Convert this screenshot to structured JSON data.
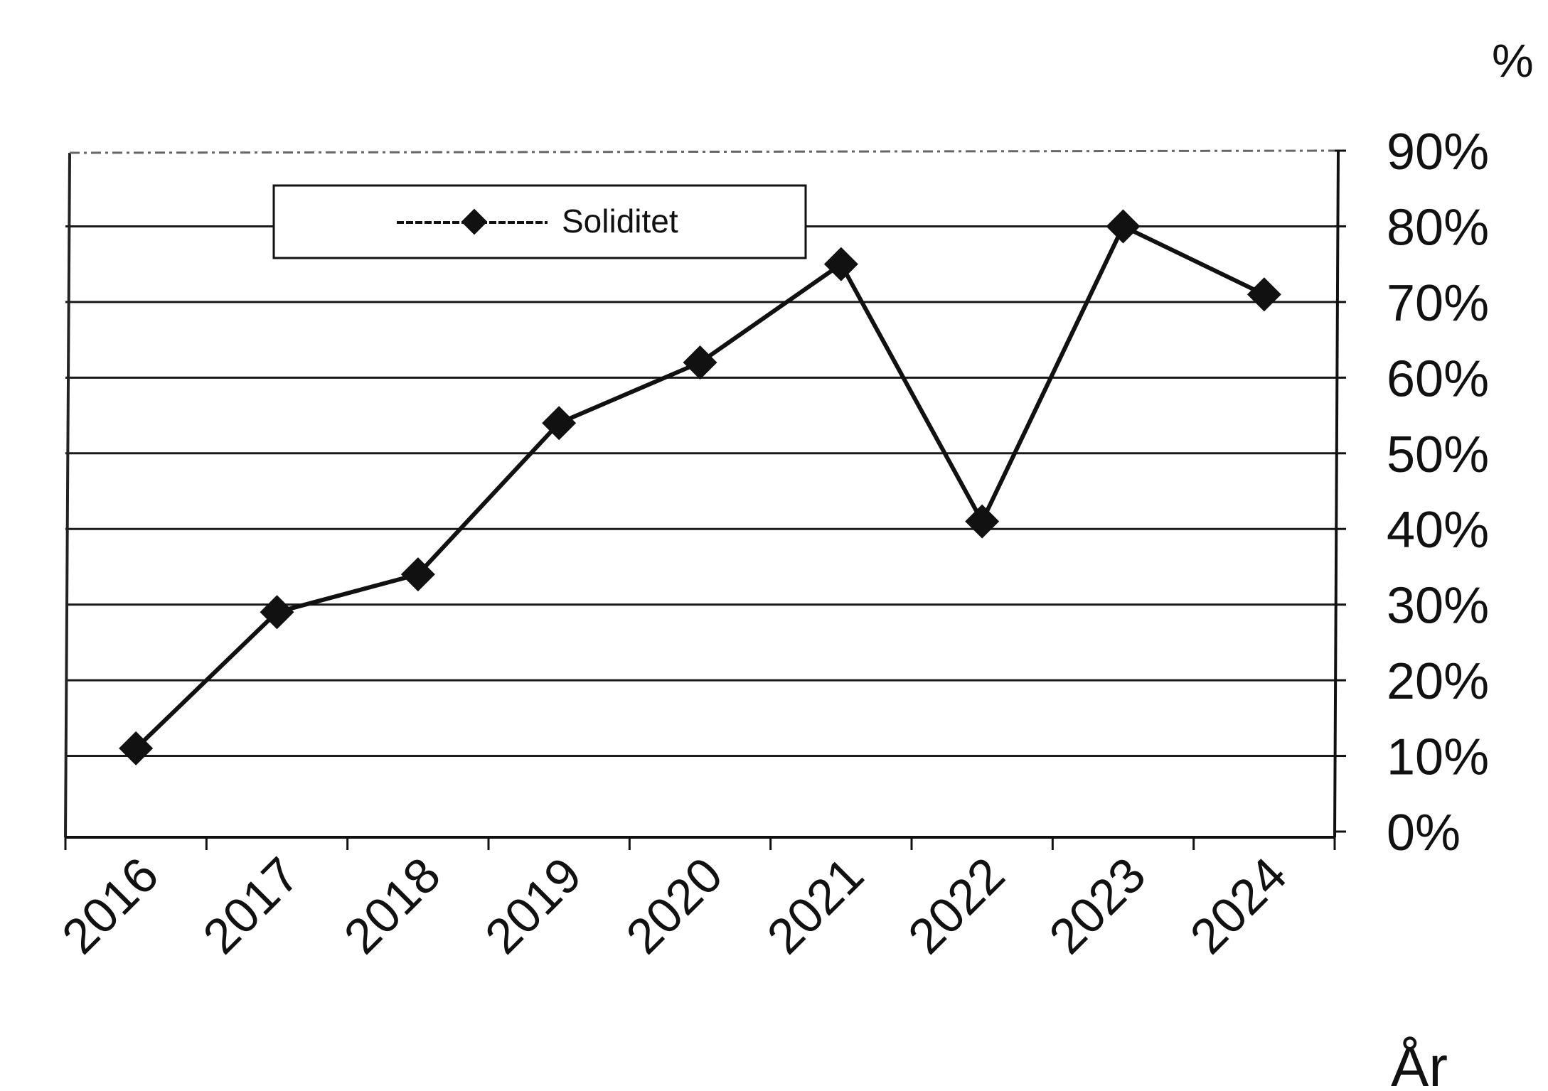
{
  "chart_data": {
    "type": "line",
    "categories": [
      "2016",
      "2017",
      "2018",
      "2019",
      "2020",
      "2021",
      "2022",
      "2023",
      "2024"
    ],
    "series": [
      {
        "name": "Soliditet",
        "values": [
          11,
          29,
          34,
          54,
          62,
          75,
          41,
          80,
          71
        ]
      }
    ],
    "title": "",
    "xlabel": "År",
    "ylabel": "%",
    "ylim": [
      0,
      90
    ],
    "yticks": [
      0,
      10,
      20,
      30,
      40,
      50,
      60,
      70,
      80,
      90
    ],
    "ytick_labels": [
      "0%",
      "10%",
      "20%",
      "30%",
      "40%",
      "50%",
      "60%",
      "70%",
      "80%",
      "90%"
    ],
    "y_axis_side": "right",
    "grid": true,
    "legend": {
      "position": "top-left",
      "entries": [
        "Soliditet"
      ]
    },
    "colors": {
      "line": "#111111",
      "grid": "#1a1a1a",
      "background": "#ffffff"
    }
  }
}
